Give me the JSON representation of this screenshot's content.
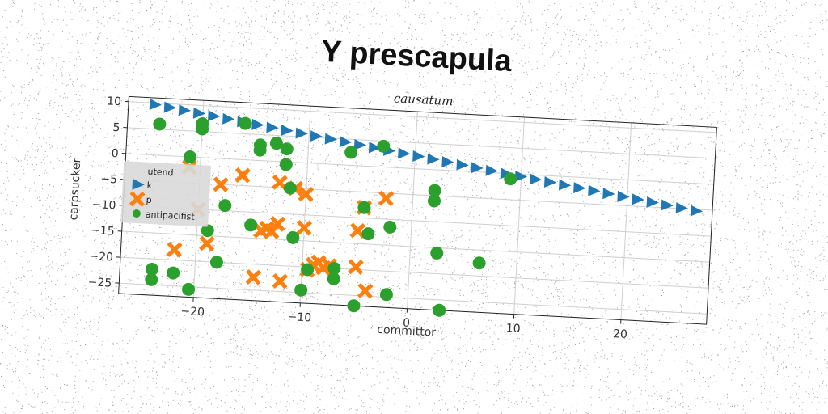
{
  "colors": {
    "k": "#1f77b4",
    "p": "#ff7f0e",
    "antipacifist": "#2ca02c",
    "grid": "#cfcfcf",
    "legend_bg": "#d9d9d9"
  },
  "chart_data": {
    "type": "scatter",
    "title": "Y prescapula",
    "subtitle": "causatum",
    "xlabel": "committor",
    "ylabel": "carpsucker",
    "xlim": [
      -27,
      28
    ],
    "ylim": [
      -27,
      11
    ],
    "xticks": [
      -20,
      -10,
      0,
      10,
      20
    ],
    "yticks": [
      10,
      5,
      0,
      -5,
      -10,
      -15,
      -20,
      -25
    ],
    "grid": true,
    "legend": {
      "placement": "center-left",
      "title": "utend",
      "entries": [
        "k",
        "p",
        "antipacifist"
      ]
    },
    "series": [
      {
        "name": "k",
        "marker": "triangle-right",
        "line": {
          "x0": -24.5,
          "y0": 9.7,
          "x1": 26.5,
          "y1": -5.3,
          "count": 38
        }
      },
      {
        "name": "p",
        "marker": "x",
        "points": [
          [
            -21,
            -2
          ],
          [
            -22,
            -18
          ],
          [
            -20,
            -10
          ],
          [
            -19,
            -16.5
          ],
          [
            -18,
            -5
          ],
          [
            -16,
            -3
          ],
          [
            -14.5,
            -22.5
          ],
          [
            -14,
            -13.5
          ],
          [
            -13.5,
            -13
          ],
          [
            -13,
            -13.5
          ],
          [
            -12.5,
            -12
          ],
          [
            -12.5,
            -4
          ],
          [
            -12,
            -23
          ],
          [
            -11,
            -5
          ],
          [
            -10,
            -6
          ],
          [
            -10,
            -12.5
          ],
          [
            -9.5,
            -20.5
          ],
          [
            -9,
            -19.5
          ],
          [
            -8.5,
            -19
          ],
          [
            -8,
            -20
          ],
          [
            -7.5,
            -19.5
          ],
          [
            -5,
            -12.5
          ],
          [
            -5,
            -19.5
          ],
          [
            -4.5,
            -8
          ],
          [
            -4,
            -24
          ],
          [
            -2.5,
            -6
          ]
        ]
      },
      {
        "name": "antipacifist",
        "marker": "circle",
        "points": [
          [
            -24,
            6
          ],
          [
            -24,
            -22
          ],
          [
            -24,
            -24
          ],
          [
            -22,
            -22.5
          ],
          [
            -21,
            0
          ],
          [
            -20.5,
            -25.5
          ],
          [
            -20,
            6.5
          ],
          [
            -20,
            5.5
          ],
          [
            -19,
            -14
          ],
          [
            -18,
            -20
          ],
          [
            -17.5,
            -9
          ],
          [
            -16,
            7
          ],
          [
            -15,
            -12.5
          ],
          [
            -14.5,
            3
          ],
          [
            -14.5,
            2
          ],
          [
            -13,
            3.5
          ],
          [
            -12,
            2.5
          ],
          [
            -12,
            -0.5
          ],
          [
            -11.5,
            -5
          ],
          [
            -11,
            -14.5
          ],
          [
            -10,
            -24.5
          ],
          [
            -9.5,
            -20.5
          ],
          [
            -7,
            -20
          ],
          [
            -7,
            -22
          ],
          [
            -6,
            2.5
          ],
          [
            -5,
            -27
          ],
          [
            -4.5,
            -8
          ],
          [
            -4,
            -13
          ],
          [
            -3,
            4
          ],
          [
            -2,
            -11.5
          ],
          [
            -2,
            -24.5
          ],
          [
            2,
            -4
          ],
          [
            2,
            -6
          ],
          [
            2.5,
            -16
          ],
          [
            3,
            -27
          ],
          [
            6.5,
            -17.5
          ],
          [
            9,
            -1
          ]
        ]
      }
    ]
  }
}
